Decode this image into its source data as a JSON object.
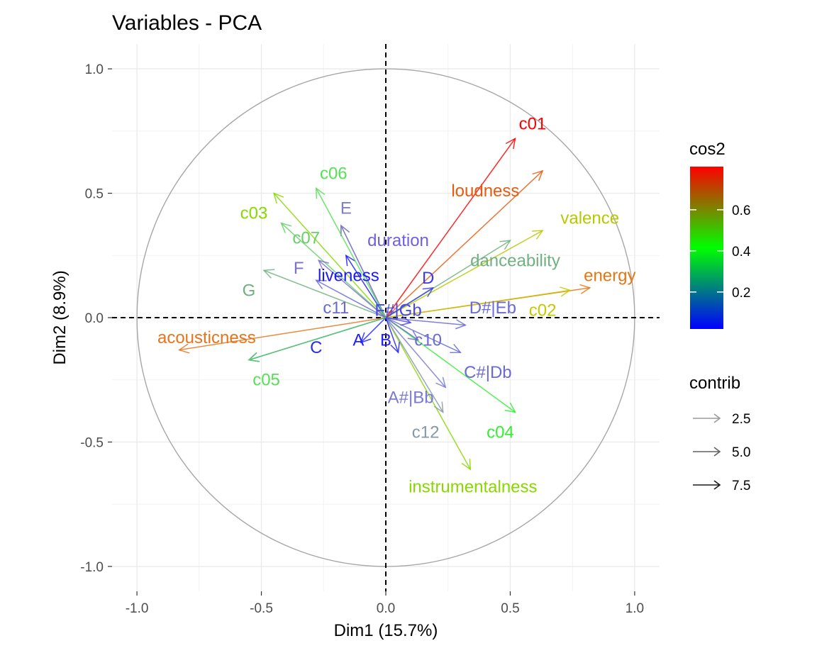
{
  "chart_data": {
    "type": "scatter",
    "subtype": "pca-variable-correlation-circle",
    "title": "Variables - PCA",
    "xlabel": "Dim1 (15.7%)",
    "ylabel": "Dim2 (8.9%)",
    "xlim": [
      -1.1,
      1.1
    ],
    "ylim": [
      -1.1,
      1.1
    ],
    "x_ticks": [
      -1.0,
      -0.5,
      0.0,
      0.5,
      1.0
    ],
    "y_ticks": [
      -1.0,
      -0.5,
      0.0,
      0.5,
      1.0
    ],
    "x_tick_labels": [
      "-1.0",
      "-0.5",
      "0.0",
      "0.5",
      "1.0"
    ],
    "y_tick_labels": [
      "-1.0",
      "-0.5",
      "0.0",
      "0.5",
      "1.0"
    ],
    "grid": true,
    "unit_circle": true,
    "variables": [
      {
        "name": "c01",
        "x": 0.52,
        "y": 0.72,
        "label_x": 0.59,
        "label_y": 0.78,
        "color": "#ff0000"
      },
      {
        "name": "loudness",
        "x": 0.63,
        "y": 0.59,
        "label_x": 0.4,
        "label_y": 0.51,
        "color": "#e85a10"
      },
      {
        "name": "valence",
        "x": 0.63,
        "y": 0.35,
        "label_x": 0.82,
        "label_y": 0.4,
        "color": "#b8c800"
      },
      {
        "name": "energy",
        "x": 0.82,
        "y": 0.12,
        "label_x": 0.9,
        "label_y": 0.17,
        "color": "#e07818"
      },
      {
        "name": "c02",
        "x": 0.74,
        "y": 0.11,
        "label_x": 0.63,
        "label_y": 0.03,
        "color": "#c8c800"
      },
      {
        "name": "danceability",
        "x": 0.5,
        "y": 0.31,
        "label_x": 0.52,
        "label_y": 0.23,
        "color": "#70b080"
      },
      {
        "name": "D",
        "x": 0.19,
        "y": 0.12,
        "label_x": 0.17,
        "label_y": 0.16,
        "color": "#3a3aee"
      },
      {
        "name": "D#|Eb",
        "x": 0.32,
        "y": -0.03,
        "label_x": 0.43,
        "label_y": 0.04,
        "color": "#6a6ad4"
      },
      {
        "name": "C#|Db",
        "x": 0.3,
        "y": -0.14,
        "label_x": 0.41,
        "label_y": -0.22,
        "color": "#6a6ad4"
      },
      {
        "name": "c04",
        "x": 0.52,
        "y": -0.38,
        "label_x": 0.46,
        "label_y": -0.46,
        "color": "#33ee33"
      },
      {
        "name": "instrumentalness",
        "x": 0.34,
        "y": -0.61,
        "label_x": 0.35,
        "label_y": -0.68,
        "color": "#88d800"
      },
      {
        "name": "c12",
        "x": 0.23,
        "y": -0.38,
        "label_x": 0.16,
        "label_y": -0.46,
        "color": "#8898a8"
      },
      {
        "name": "A#|Bb",
        "x": 0.24,
        "y": -0.28,
        "label_x": 0.1,
        "label_y": -0.32,
        "color": "#7a7ad4"
      },
      {
        "name": "c10",
        "x": 0.13,
        "y": -0.09,
        "label_x": 0.17,
        "label_y": -0.09,
        "color": "#6a6ad4"
      },
      {
        "name": "B",
        "x": 0.05,
        "y": -0.14,
        "label_x": 0.0,
        "label_y": -0.09,
        "color": "#2222ff"
      },
      {
        "name": "A",
        "x": -0.1,
        "y": -0.1,
        "label_x": -0.11,
        "label_y": -0.09,
        "color": "#2222ff"
      },
      {
        "name": "F#|Gb",
        "x": 0.1,
        "y": -0.02,
        "label_x": 0.05,
        "label_y": 0.03,
        "color": "#4848ea"
      },
      {
        "name": "liveness",
        "x": -0.16,
        "y": 0.25,
        "label_x": -0.15,
        "label_y": 0.17,
        "color": "#1a1aff"
      },
      {
        "name": "duration",
        "x": -0.18,
        "y": 0.37,
        "label_x": 0.05,
        "label_y": 0.31,
        "color": "#7060e0"
      },
      {
        "name": "E",
        "x": -0.18,
        "y": 0.37,
        "label_x": -0.16,
        "label_y": 0.44,
        "color": "#8080c0"
      },
      {
        "name": "c06",
        "x": -0.28,
        "y": 0.52,
        "label_x": -0.21,
        "label_y": 0.58,
        "color": "#55e055"
      },
      {
        "name": "c03",
        "x": -0.45,
        "y": 0.5,
        "label_x": -0.53,
        "label_y": 0.42,
        "color": "#88d800"
      },
      {
        "name": "c07",
        "x": -0.42,
        "y": 0.38,
        "label_x": -0.32,
        "label_y": 0.32,
        "color": "#66d066"
      },
      {
        "name": "F",
        "x": -0.27,
        "y": 0.23,
        "label_x": -0.35,
        "label_y": 0.2,
        "color": "#7a70d0"
      },
      {
        "name": "G",
        "x": -0.49,
        "y": 0.19,
        "label_x": -0.55,
        "label_y": 0.11,
        "color": "#70b080"
      },
      {
        "name": "c11",
        "x": -0.28,
        "y": 0.15,
        "label_x": -0.2,
        "label_y": 0.04,
        "color": "#6a6ad4"
      },
      {
        "name": "acousticness",
        "x": -0.83,
        "y": -0.13,
        "label_x": -0.72,
        "label_y": -0.08,
        "color": "#e8741a"
      },
      {
        "name": "C",
        "x": -0.55,
        "y": -0.17,
        "label_x": -0.28,
        "label_y": -0.12,
        "color": "#2a2aee"
      },
      {
        "name": "c05",
        "x": -0.55,
        "y": -0.17,
        "label_x": -0.48,
        "label_y": -0.25,
        "color": "#55e055"
      }
    ],
    "legend": {
      "placement": "right",
      "color_title": "cos2",
      "color_ticks": [
        0.6,
        0.4,
        0.2
      ],
      "color_tick_labels": [
        "0.6",
        "0.4",
        "0.2"
      ],
      "color_gradient": [
        "#0000ff",
        "#00ff00",
        "#ff0000"
      ],
      "contrib_title": "contrib",
      "contrib_entries": [
        {
          "label": "2.5",
          "color": "#9a9a9a"
        },
        {
          "label": "5.0",
          "color": "#606060"
        },
        {
          "label": "7.5",
          "color": "#1a1a1a"
        }
      ]
    }
  }
}
